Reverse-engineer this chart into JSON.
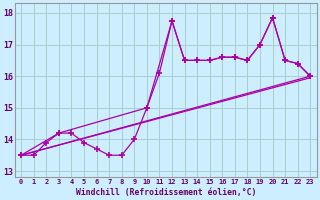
{
  "background_color": "#cceeff",
  "grid_color": "#aacccc",
  "line_color": "#aa00aa",
  "xlabel": "Windchill (Refroidissement éolien,°C)",
  "ylim": [
    12.8,
    18.3
  ],
  "xlim": [
    -0.5,
    23.5
  ],
  "yticks": [
    13,
    14,
    15,
    16,
    17,
    18
  ],
  "xticks": [
    0,
    1,
    2,
    3,
    4,
    5,
    6,
    7,
    8,
    9,
    10,
    11,
    12,
    13,
    14,
    15,
    16,
    17,
    18,
    19,
    20,
    21,
    22,
    23
  ],
  "series1_x": [
    0,
    1,
    2,
    3,
    4,
    5,
    6,
    7,
    8,
    9,
    10,
    11,
    12,
    13,
    14,
    15,
    16,
    17,
    18,
    19,
    20,
    21,
    22,
    23
  ],
  "series1_y": [
    13.5,
    13.5,
    13.9,
    14.2,
    14.2,
    13.9,
    13.7,
    13.5,
    13.5,
    14.0,
    15.0,
    16.1,
    17.75,
    16.5,
    16.5,
    16.5,
    16.6,
    16.6,
    16.5,
    17.0,
    17.85,
    16.5,
    16.4,
    16.0
  ],
  "series2_x": [
    0,
    3,
    10,
    12,
    13,
    14,
    15,
    16,
    17,
    18,
    19,
    20,
    21,
    22,
    23
  ],
  "series2_y": [
    13.5,
    14.2,
    15.0,
    17.75,
    16.5,
    16.5,
    16.5,
    16.6,
    16.6,
    16.5,
    17.0,
    17.85,
    16.5,
    16.4,
    16.0
  ],
  "line3_x": [
    0,
    23
  ],
  "line3_y": [
    13.5,
    16.0
  ],
  "line4_x": [
    0,
    23
  ],
  "line4_y": [
    13.5,
    15.95
  ]
}
